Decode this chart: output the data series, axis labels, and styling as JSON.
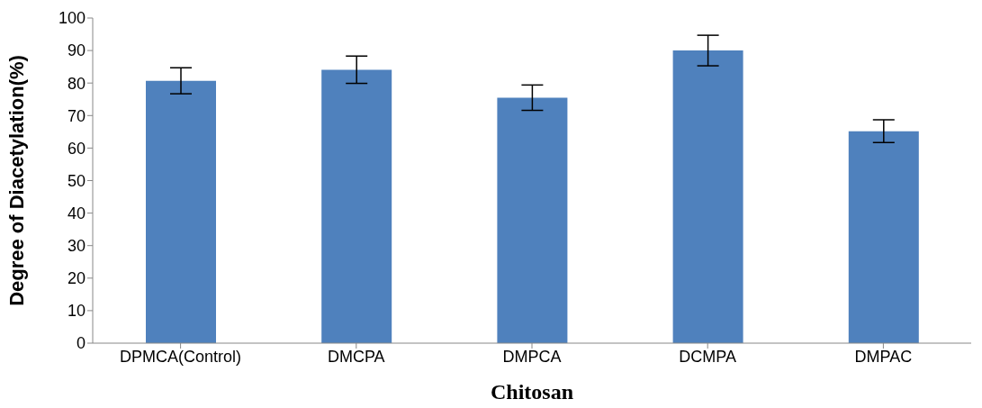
{
  "chart_data": {
    "type": "bar",
    "xlabel": "Chitosan",
    "ylabel": "Degree of Diacetylation(%)",
    "categories": [
      "DPMCA(Control)",
      "DMCPA",
      "DMPCA",
      "DCMPA",
      "DMPAC"
    ],
    "values": [
      80.7,
      84.1,
      75.5,
      90,
      65.2
    ],
    "errors": [
      4,
      4.2,
      3.9,
      4.7,
      3.5
    ],
    "color": "#4f81bd",
    "ylim": [
      0,
      100
    ],
    "yticks": [
      0,
      10,
      20,
      30,
      40,
      50,
      60,
      70,
      80,
      90,
      100
    ],
    "grid": false,
    "legend": false
  }
}
